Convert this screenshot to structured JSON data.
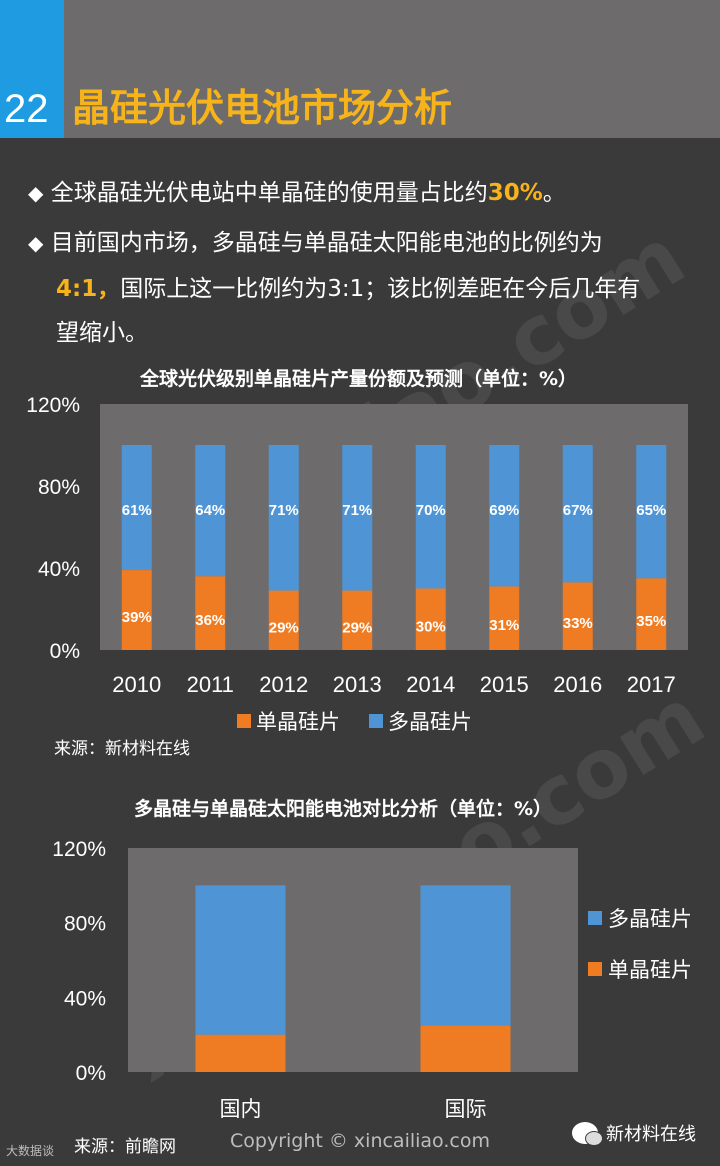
{
  "header": {
    "page_number": "22",
    "title": "晶硅光伏电池市场分析"
  },
  "bullets": [
    {
      "marker": "◆",
      "text_before": "全球晶硅光伏电站中单晶硅的使用量占比约",
      "highlight": "30%",
      "text_after": "。"
    },
    {
      "marker": "◆",
      "line1": "目前国内市场，多晶硅与单晶硅太阳能电池的比例约为",
      "highlight": "4:1，",
      "line2_after": "国际上这一比例约为3:1；该比例差距在今后几年有",
      "line3": "望缩小。"
    }
  ],
  "chart1_source": "来源：新材料在线",
  "chart2_source": "来源：前瞻网",
  "watermarks": {
    "main": "xincailiao.com",
    "cn": "新材料在线",
    "copyright": "Copyright © xincailiao.com",
    "wechat_label": "新材料在线",
    "corner": "大数据谈"
  },
  "colors": {
    "mono": "#ef7b22",
    "poly": "#4f95d6",
    "plot_bg": "#6d6b6c",
    "accent": "#f6b31a",
    "header_blue": "#1e9be1"
  },
  "chart_data": [
    {
      "type": "bar",
      "stacked": true,
      "title": "全球光伏级别单晶硅片产量份额及预测（单位：%）",
      "categories": [
        "2010",
        "2011",
        "2012",
        "2013",
        "2014",
        "2015",
        "2016",
        "2017"
      ],
      "series": [
        {
          "name": "单晶硅片",
          "values": [
            39,
            36,
            29,
            29,
            30,
            31,
            33,
            35
          ],
          "labels": [
            "39%",
            "36%",
            "29%",
            "29%",
            "30%",
            "31%",
            "33%",
            "35%"
          ]
        },
        {
          "name": "多晶硅片",
          "values": [
            61,
            64,
            71,
            71,
            70,
            69,
            67,
            65
          ],
          "labels": [
            "61%",
            "64%",
            "71%",
            "71%",
            "70%",
            "69%",
            "67%",
            "65%"
          ]
        }
      ],
      "ylim": [
        0,
        120
      ],
      "yticks": [
        "0%",
        "40%",
        "80%",
        "120%"
      ],
      "ytick_values": [
        0,
        40,
        80,
        120
      ],
      "legend": [
        "单晶硅片",
        "多晶硅片"
      ],
      "legend_position": "bottom"
    },
    {
      "type": "bar",
      "stacked": true,
      "title": "多晶硅与单晶硅太阳能电池对比分析（单位：%）",
      "categories": [
        "国内",
        "国际"
      ],
      "series": [
        {
          "name": "单晶硅片",
          "values": [
            20,
            25
          ]
        },
        {
          "name": "多晶硅片",
          "values": [
            80,
            75
          ]
        }
      ],
      "ylim": [
        0,
        120
      ],
      "yticks": [
        "0%",
        "40%",
        "80%",
        "120%"
      ],
      "ytick_values": [
        0,
        40,
        80,
        120
      ],
      "legend": [
        "多晶硅片",
        "单晶硅片"
      ],
      "legend_position": "right"
    }
  ]
}
